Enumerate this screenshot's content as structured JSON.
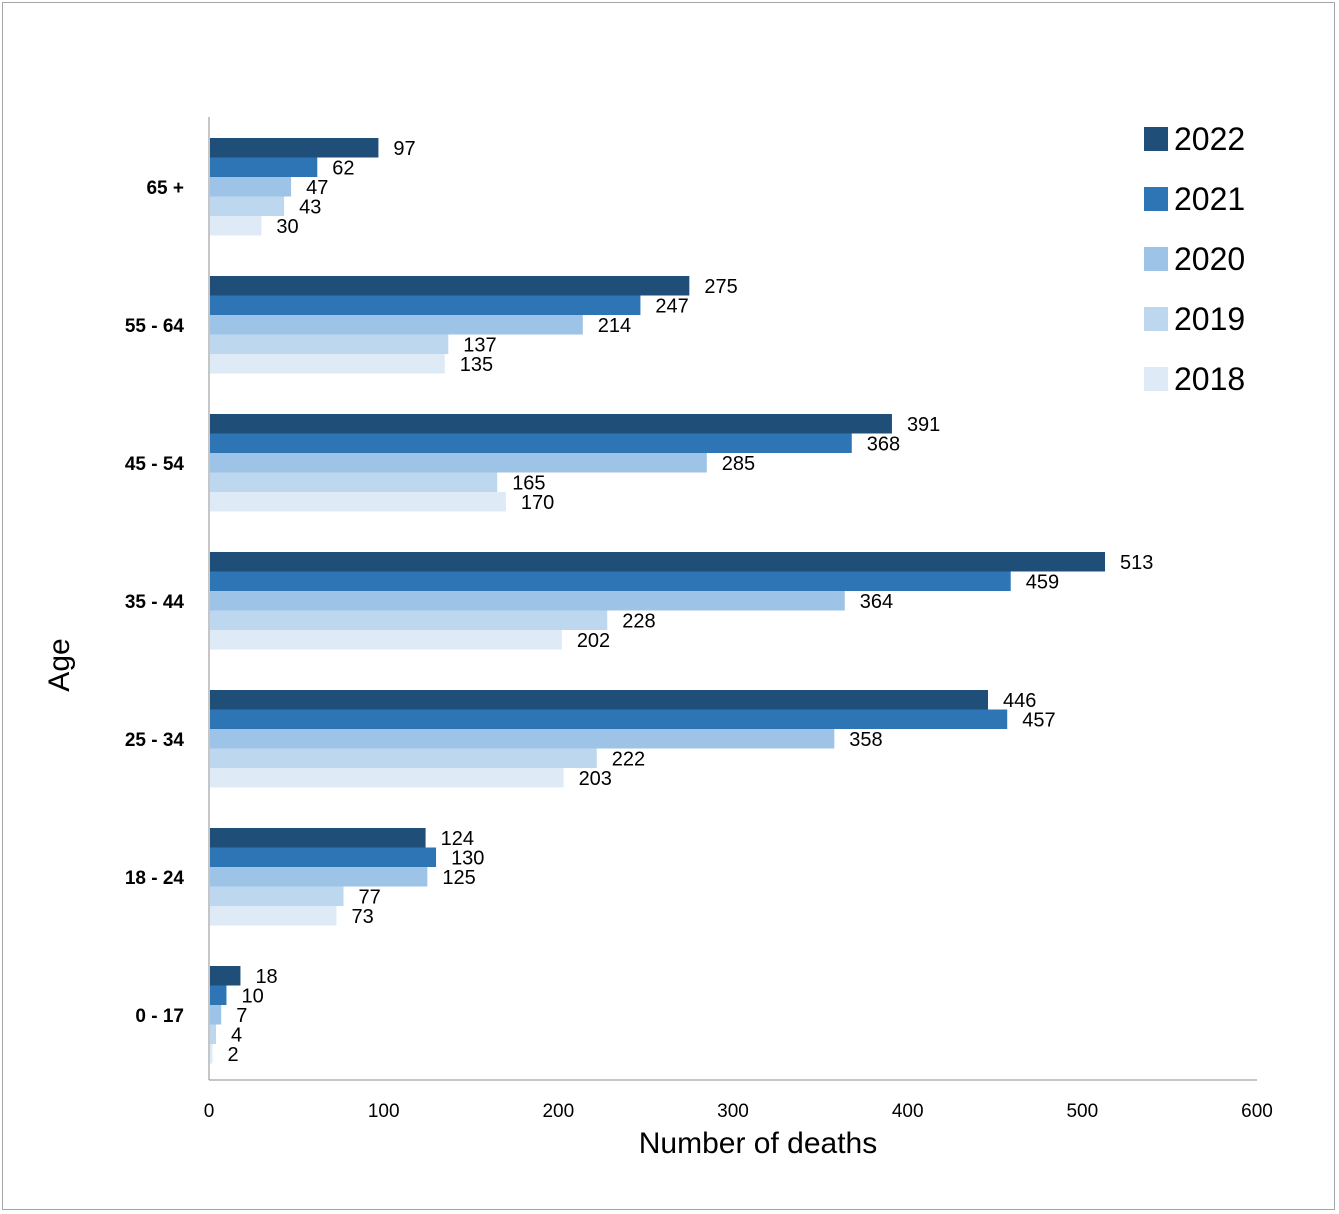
{
  "chart_data": {
    "type": "bar",
    "orientation": "horizontal",
    "xlabel": "Number of deaths",
    "ylabel": "Age",
    "xlim": [
      0,
      600
    ],
    "xticks": [
      "0",
      "100",
      "200",
      "300",
      "400",
      "500",
      "600"
    ],
    "grid": false,
    "legend_position": "top-right",
    "categories": [
      "65 +",
      "55 - 64",
      "45 - 54",
      "35  - 44",
      "25 - 34",
      "18 - 24",
      "0  - 17"
    ],
    "series": [
      {
        "name": "2022",
        "color": "#1f4e79",
        "values": [
          97,
          275,
          391,
          513,
          446,
          124,
          18
        ]
      },
      {
        "name": "2021",
        "color": "#2e75b6",
        "values": [
          62,
          247,
          368,
          459,
          457,
          130,
          10
        ]
      },
      {
        "name": "2020",
        "color": "#9dc3e6",
        "values": [
          47,
          214,
          285,
          364,
          358,
          125,
          7
        ]
      },
      {
        "name": "2019",
        "color": "#bdd7ee",
        "values": [
          43,
          137,
          165,
          228,
          222,
          77,
          4
        ]
      },
      {
        "name": "2018",
        "color": "#deebf7",
        "values": [
          30,
          135,
          170,
          202,
          203,
          73,
          2
        ]
      }
    ]
  }
}
